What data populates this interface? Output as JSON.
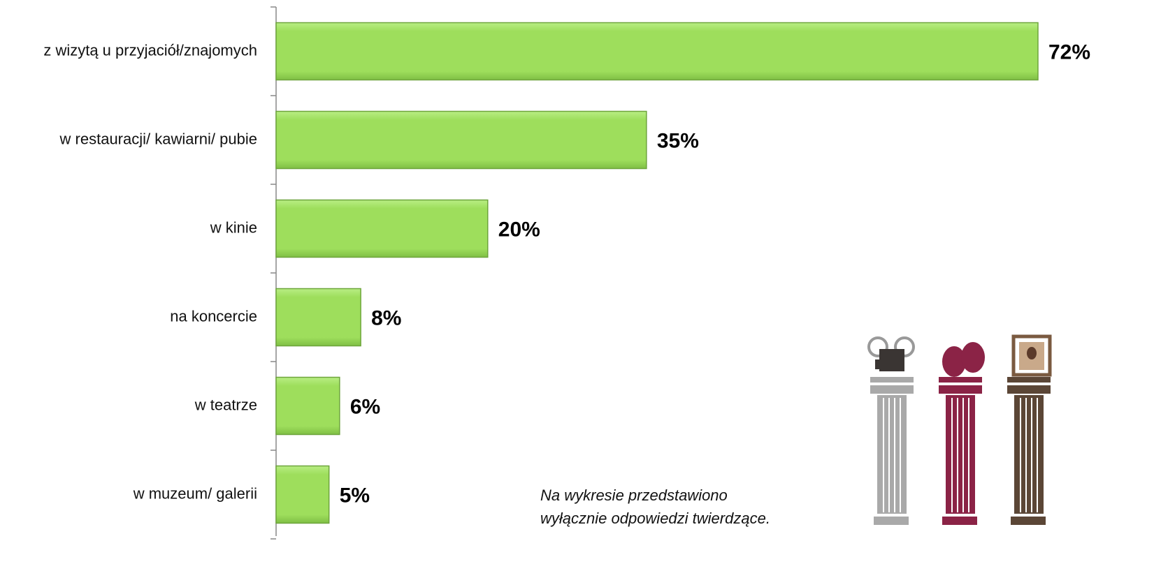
{
  "chart_data": {
    "type": "bar",
    "orientation": "horizontal",
    "categories": [
      "z wizytą u przyjaciół/znajomych",
      "w restauracji/ kawiarni/ pubie",
      "w kinie",
      "na koncercie",
      "w teatrze",
      "w muzeum/ galerii"
    ],
    "values": [
      72,
      35,
      20,
      8,
      6,
      5
    ],
    "value_labels": [
      "72%",
      "35%",
      "20%",
      "8%",
      "6%",
      "5%"
    ],
    "color": "#9ede5c",
    "xlim": [
      0,
      72
    ],
    "annotation": [
      "Na wykresie przedstawiono",
      "wyłącznie odpowiedzi twierdzące."
    ]
  }
}
